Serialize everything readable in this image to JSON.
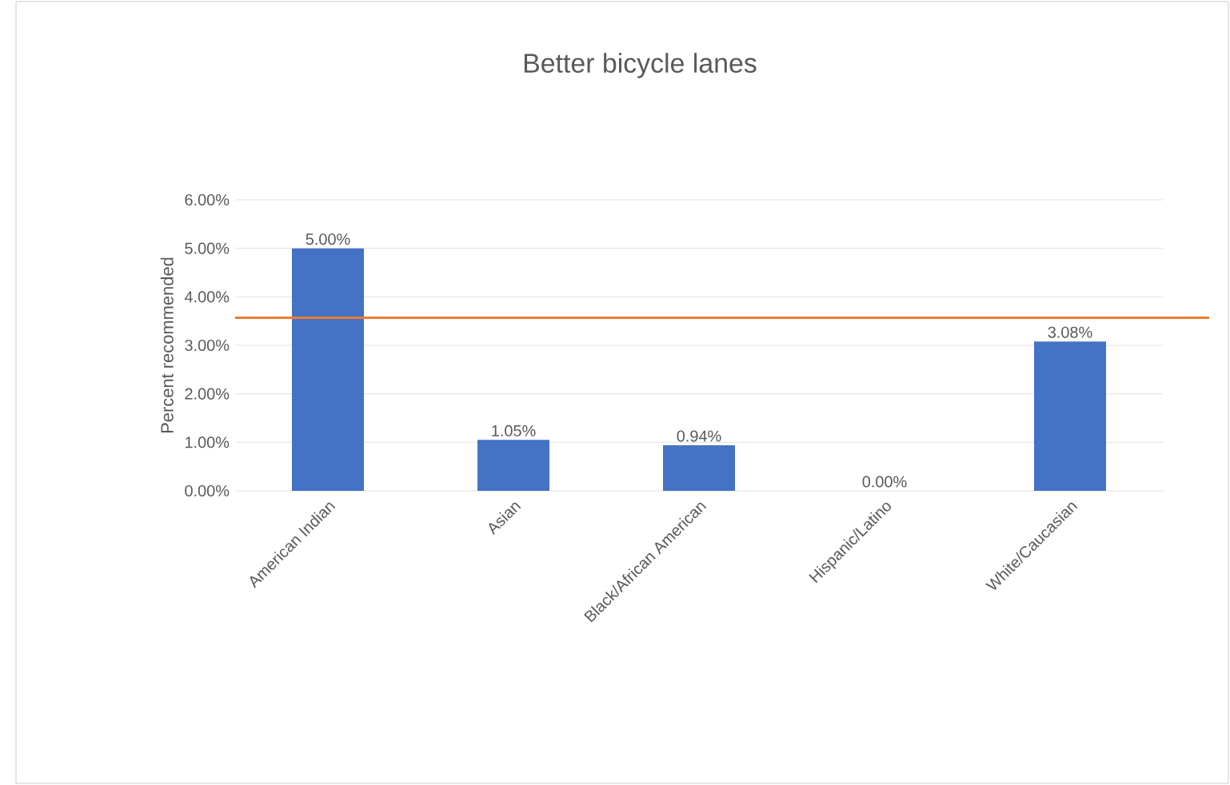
{
  "chart_data": {
    "type": "bar",
    "title": "Better bicycle lanes",
    "ylabel": "Percent recommended",
    "categories": [
      "American Indian",
      "Asian",
      "Black/African American",
      "Hispanic/Latino",
      "White/Caucasian"
    ],
    "values": [
      5.0,
      1.05,
      0.94,
      0.0,
      3.08
    ],
    "value_labels": [
      "5.00%",
      "1.05%",
      "0.94%",
      "0.00%",
      "3.08%"
    ],
    "color": "#4472c4",
    "ylim": [
      0,
      6
    ],
    "yticks": [
      {
        "value": 0,
        "label": "0.00%"
      },
      {
        "value": 1,
        "label": "1.00%"
      },
      {
        "value": 2,
        "label": "2.00%"
      },
      {
        "value": 3,
        "label": "3.00%"
      },
      {
        "value": 4,
        "label": "4.00%"
      },
      {
        "value": 5,
        "label": "5.00%"
      },
      {
        "value": 6,
        "label": "6.00%"
      }
    ],
    "grid": "y",
    "ref_lines": [
      {
        "axis": "y",
        "value": 3.57,
        "color": "#ed7d31"
      }
    ]
  }
}
